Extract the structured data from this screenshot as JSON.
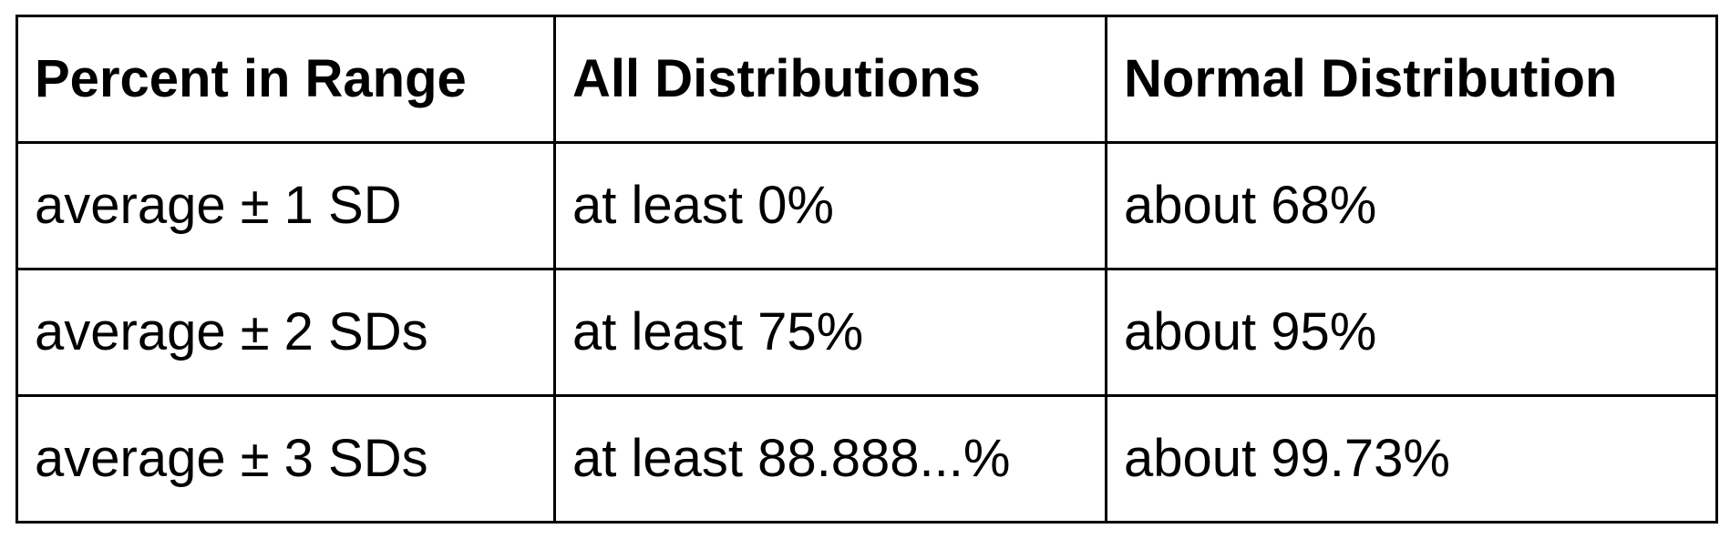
{
  "table": {
    "headers": [
      "Percent in Range",
      "All Distributions",
      "Normal Distribution"
    ],
    "rows": [
      [
        "average ± 1 SD",
        "at least 0%",
        "about 68%"
      ],
      [
        "average ± 2 SDs",
        "at least 75%",
        "about 95%"
      ],
      [
        "average ± 3 SDs",
        "at least 88.888...%",
        "about 99.73%"
      ]
    ]
  }
}
